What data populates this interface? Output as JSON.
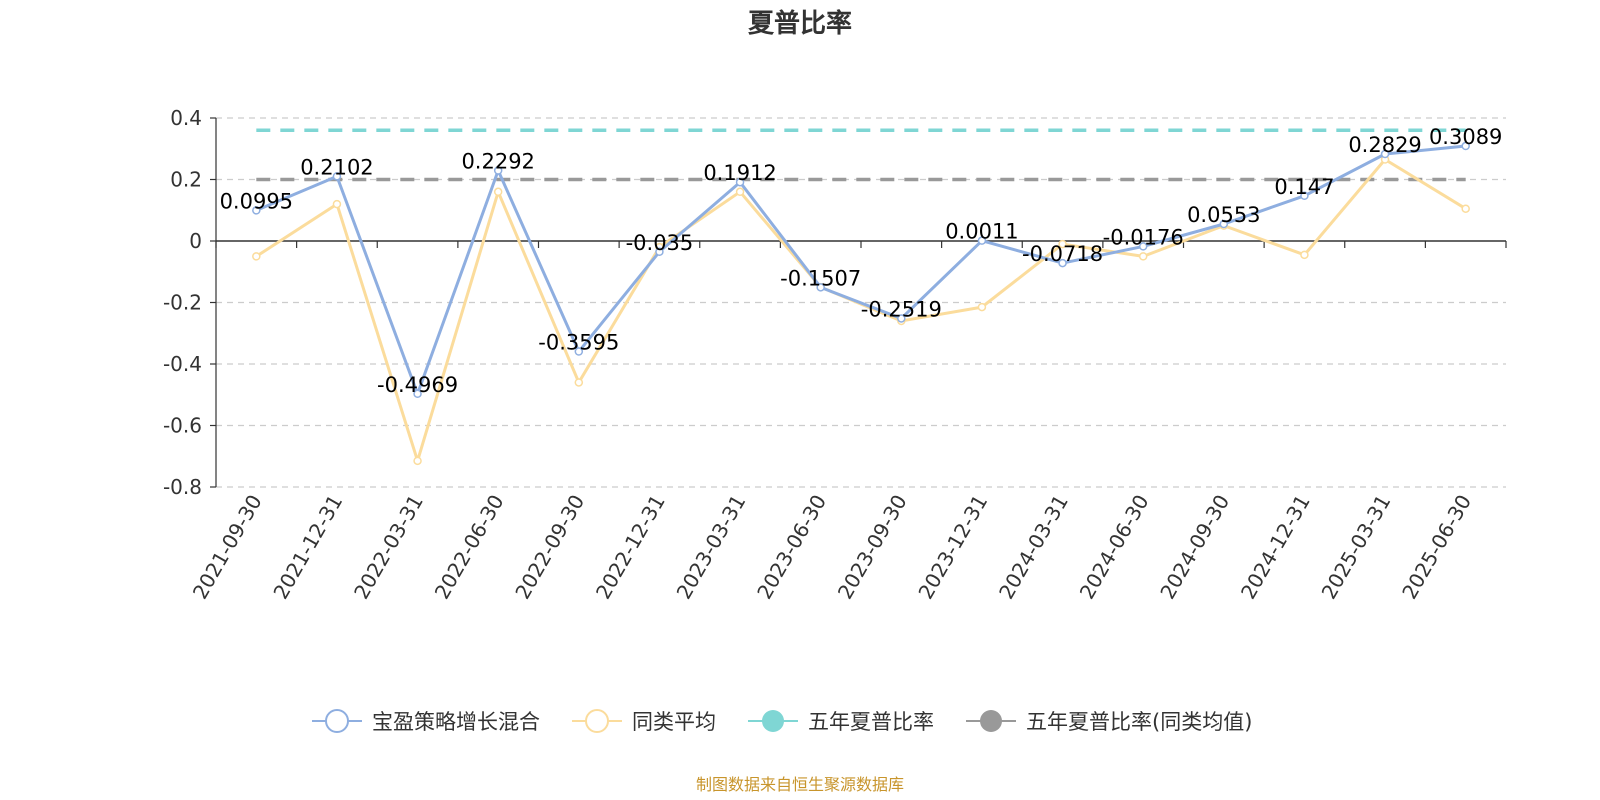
{
  "chart_data": {
    "type": "line",
    "title": "夏普比率",
    "x": [
      "2021-09-30",
      "2021-12-31",
      "2022-03-31",
      "2022-06-30",
      "2022-09-30",
      "2022-12-31",
      "2023-03-31",
      "2023-06-30",
      "2023-09-30",
      "2023-12-31",
      "2024-03-31",
      "2024-06-30",
      "2024-09-30",
      "2024-12-31",
      "2025-03-31",
      "2025-06-30"
    ],
    "ylim": [
      -0.8,
      0.4
    ],
    "yticks": [
      0.4,
      0.2,
      0,
      -0.2,
      -0.4,
      -0.6,
      -0.8
    ],
    "ytick_labels": [
      "0.4",
      "0.2",
      "0",
      "-0.2",
      "-0.4",
      "-0.6",
      "-0.8"
    ],
    "grid": "horizontal-dashed",
    "legend_position": "bottom",
    "series": [
      {
        "name": "宝盈策略增长混合",
        "color": "#8eaee0",
        "values": [
          0.0995,
          0.2102,
          -0.4969,
          0.2292,
          -0.3595,
          -0.035,
          0.1912,
          -0.1507,
          -0.2519,
          0.0011,
          -0.0718,
          -0.0176,
          0.0553,
          0.147,
          0.2829,
          0.3089
        ],
        "labels": [
          "0.0995",
          "0.2102",
          "-0.4969",
          "0.2292",
          "-0.3595",
          "-0.035",
          "0.1912",
          "-0.1507",
          "-0.2519",
          "0.0011",
          "-0.0718",
          "-0.0176",
          "0.0553",
          "0.147",
          "0.2829",
          "0.3089"
        ]
      },
      {
        "name": "同类平均",
        "color": "#fbdc9c",
        "values": [
          -0.05,
          0.12,
          -0.715,
          0.16,
          -0.46,
          -0.02,
          0.16,
          -0.15,
          -0.26,
          -0.215,
          -0.01,
          -0.05,
          0.05,
          -0.045,
          0.265,
          0.105
        ]
      },
      {
        "name": "五年夏普比率",
        "color": "#7fd6d4",
        "constant": 0.36
      },
      {
        "name": "五年夏普比率(同类均值)",
        "color": "#999999",
        "constant": 0.2
      }
    ]
  },
  "footer": {
    "source": "制图数据来自恒生聚源数据库"
  }
}
